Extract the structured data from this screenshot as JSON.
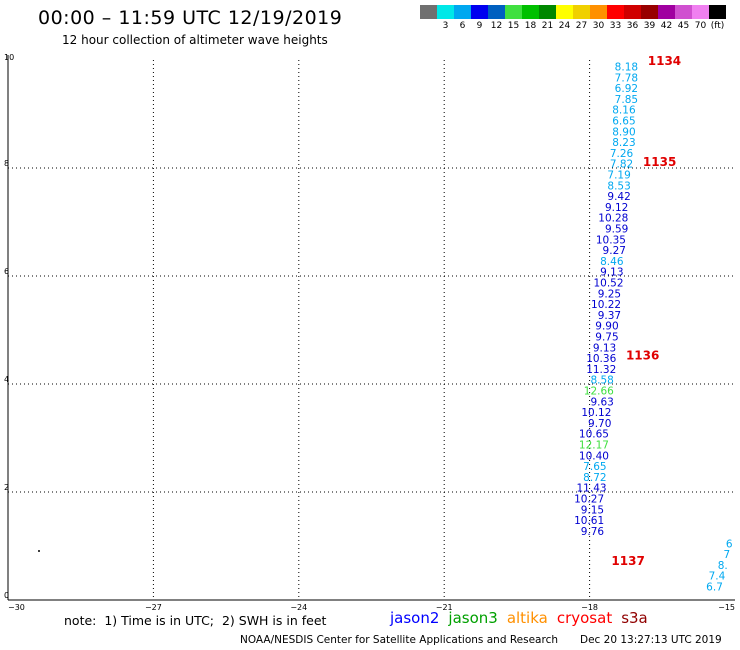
{
  "header": {
    "title": "00:00 – 11:59 UTC 12/19/2019",
    "subtitle": "12 hour collection of altimeter wave heights"
  },
  "colorbar": {
    "colors": [
      "#707070",
      "#00e8e8",
      "#00a8f0",
      "#0000f0",
      "#0060c0",
      "#40e040",
      "#00c000",
      "#008800",
      "#ffff00",
      "#f0d000",
      "#ff9000",
      "#ff0000",
      "#d00000",
      "#980000",
      "#a000a0",
      "#d050d0",
      "#f080f0",
      "#000000"
    ],
    "labels": [
      "",
      "3",
      "6",
      "9",
      "12",
      "15",
      "18",
      "21",
      "24",
      "27",
      "30",
      "33",
      "36",
      "39",
      "42",
      "45",
      "70",
      "(ft)"
    ]
  },
  "chart_data": {
    "type": "scatter",
    "xlim": [
      -30,
      -15
    ],
    "ylim": [
      0,
      10
    ],
    "x_ticks": [
      "−30",
      "−27",
      "−24",
      "−21",
      "−18",
      "−15"
    ],
    "y_ticks": [
      "0",
      "2",
      "4",
      "6",
      "8",
      "10"
    ],
    "grid": true,
    "points": [
      {
        "x": -17.0,
        "y": 9.88,
        "label": "8.18",
        "color": "#00a8f0"
      },
      {
        "x": -17.0,
        "y": 9.68,
        "label": "7.78",
        "color": "#00a8f0"
      },
      {
        "x": -17.0,
        "y": 9.48,
        "label": "6.92",
        "color": "#00a8f0"
      },
      {
        "x": -17.0,
        "y": 9.28,
        "label": "7.85",
        "color": "#00a8f0"
      },
      {
        "x": -17.05,
        "y": 9.08,
        "label": "8.16",
        "color": "#00a8f0"
      },
      {
        "x": -17.05,
        "y": 8.88,
        "label": "6.65",
        "color": "#00a8f0"
      },
      {
        "x": -17.05,
        "y": 8.68,
        "label": "8.90",
        "color": "#00a8f0"
      },
      {
        "x": -17.05,
        "y": 8.48,
        "label": "8.23",
        "color": "#00a8f0"
      },
      {
        "x": -17.1,
        "y": 8.28,
        "label": "7.26",
        "color": "#00a8f0"
      },
      {
        "x": -17.1,
        "y": 8.08,
        "label": "7.82",
        "color": "#00a8f0"
      },
      {
        "x": -17.15,
        "y": 7.88,
        "label": "7.19",
        "color": "#00a8f0"
      },
      {
        "x": -17.15,
        "y": 7.68,
        "label": "8.53",
        "color": "#00a8f0"
      },
      {
        "x": -17.15,
        "y": 7.48,
        "label": "9.42",
        "color": "#0000d0"
      },
      {
        "x": -17.2,
        "y": 7.28,
        "label": "9.12",
        "color": "#0000d0"
      },
      {
        "x": -17.2,
        "y": 7.08,
        "label": "10.28",
        "color": "#0000d0"
      },
      {
        "x": -17.2,
        "y": 6.88,
        "label": "9.59",
        "color": "#0000d0"
      },
      {
        "x": -17.25,
        "y": 6.68,
        "label": "10.35",
        "color": "#0000d0"
      },
      {
        "x": -17.25,
        "y": 6.48,
        "label": "9.27",
        "color": "#0000d0"
      },
      {
        "x": -17.3,
        "y": 6.28,
        "label": "8.46",
        "color": "#00a8f0"
      },
      {
        "x": -17.3,
        "y": 6.08,
        "label": "9.13",
        "color": "#0000d0"
      },
      {
        "x": -17.3,
        "y": 5.88,
        "label": "10.52",
        "color": "#0000d0"
      },
      {
        "x": -17.35,
        "y": 5.68,
        "label": "9.25",
        "color": "#0000d0"
      },
      {
        "x": -17.35,
        "y": 5.48,
        "label": "10.22",
        "color": "#0000d0"
      },
      {
        "x": -17.35,
        "y": 5.28,
        "label": "9.37",
        "color": "#0000d0"
      },
      {
        "x": -17.4,
        "y": 5.08,
        "label": "9.90",
        "color": "#0000d0"
      },
      {
        "x": -17.4,
        "y": 4.88,
        "label": "9.75",
        "color": "#0000d0"
      },
      {
        "x": -17.45,
        "y": 4.68,
        "label": "9.13",
        "color": "#0000d0"
      },
      {
        "x": -17.45,
        "y": 4.48,
        "label": "10.36",
        "color": "#0000d0"
      },
      {
        "x": -17.45,
        "y": 4.28,
        "label": "11.32",
        "color": "#0000d0"
      },
      {
        "x": -17.5,
        "y": 4.08,
        "label": "8.58",
        "color": "#00a8f0"
      },
      {
        "x": -17.5,
        "y": 3.88,
        "label": "12.66",
        "color": "#40e040"
      },
      {
        "x": -17.5,
        "y": 3.68,
        "label": "9.63",
        "color": "#0000d0"
      },
      {
        "x": -17.55,
        "y": 3.48,
        "label": "10.12",
        "color": "#0000d0"
      },
      {
        "x": -17.55,
        "y": 3.28,
        "label": "9.70",
        "color": "#0000d0"
      },
      {
        "x": -17.6,
        "y": 3.08,
        "label": "10.65",
        "color": "#0000d0"
      },
      {
        "x": -17.6,
        "y": 2.88,
        "label": "12.17",
        "color": "#40e040"
      },
      {
        "x": -17.6,
        "y": 2.68,
        "label": "10.40",
        "color": "#0000d0"
      },
      {
        "x": -17.65,
        "y": 2.48,
        "label": "7.65",
        "color": "#00a8f0"
      },
      {
        "x": -17.65,
        "y": 2.28,
        "label": "8.72",
        "color": "#00a8f0"
      },
      {
        "x": -17.65,
        "y": 2.08,
        "label": "11.43",
        "color": "#0000d0"
      },
      {
        "x": -17.7,
        "y": 1.88,
        "label": "10.27",
        "color": "#0000d0"
      },
      {
        "x": -17.7,
        "y": 1.68,
        "label": "9.15",
        "color": "#0000d0"
      },
      {
        "x": -17.7,
        "y": 1.48,
        "label": "10.61",
        "color": "#0000d0"
      },
      {
        "x": -17.7,
        "y": 1.28,
        "label": "9.76",
        "color": "#0000d0"
      },
      {
        "x": -15.05,
        "y": 1.05,
        "label": "6",
        "color": "#00a8f0"
      },
      {
        "x": -15.1,
        "y": 0.85,
        "label": "7",
        "color": "#00a8f0"
      },
      {
        "x": -15.15,
        "y": 0.65,
        "label": "8.",
        "color": "#00a8f0"
      },
      {
        "x": -15.2,
        "y": 0.45,
        "label": "7.4",
        "color": "#00a8f0"
      },
      {
        "x": -15.25,
        "y": 0.25,
        "label": "6.7",
        "color": "#00a8f0"
      }
    ],
    "pass_labels": [
      {
        "x": -16.8,
        "y": 10.0,
        "text": "1134"
      },
      {
        "x": -16.9,
        "y": 8.13,
        "text": "1135"
      },
      {
        "x": -17.25,
        "y": 4.55,
        "text": "1136"
      },
      {
        "x": -17.55,
        "y": 0.74,
        "text": "1137"
      }
    ]
  },
  "footer": {
    "note": "note:  1) Time is in UTC;  2) SWH is in feet",
    "satellites": [
      {
        "name": "jason2",
        "color": "#0000ff"
      },
      {
        "name": "jason3",
        "color": "#00a000"
      },
      {
        "name": "altika",
        "color": "#ff9000"
      },
      {
        "name": "cryosat",
        "color": "#ff0000"
      },
      {
        "name": "s3a",
        "color": "#900000"
      }
    ],
    "credit": "NOAA/NESDIS Center for Satellite Applications and Research",
    "timestamp": "Dec 20 13:27:13 UTC 2019"
  }
}
